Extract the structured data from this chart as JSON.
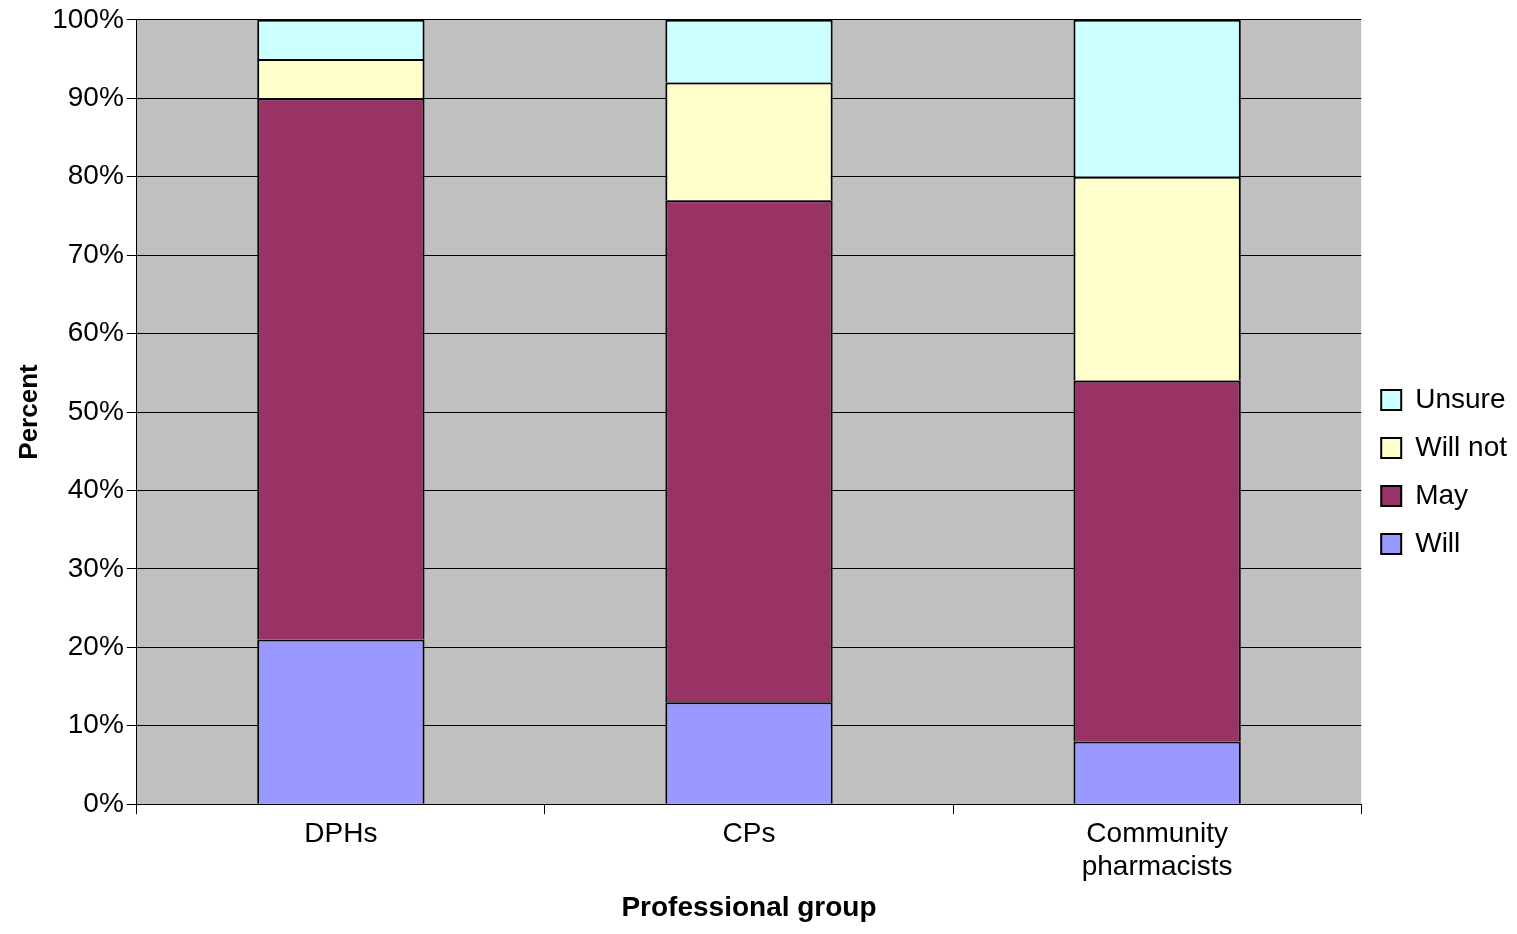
{
  "chart_data": {
    "type": "bar",
    "stacked": true,
    "xlabel": "Professional group",
    "ylabel": "Percent",
    "categories": [
      "DPHs",
      "CPs",
      "Community pharmacists"
    ],
    "series": [
      {
        "name": "Will",
        "color": "#9999ff",
        "values": [
          21,
          13,
          8
        ]
      },
      {
        "name": "May",
        "color": "#993366",
        "values": [
          69,
          64,
          46
        ]
      },
      {
        "name": "Will not",
        "color": "#ffffcc",
        "values": [
          5,
          15,
          26
        ]
      },
      {
        "name": "Unsure",
        "color": "#ccffff",
        "values": [
          5,
          8,
          20
        ]
      }
    ],
    "ylim": [
      0,
      100
    ],
    "yticks": [
      {
        "value": 0,
        "label": "0%"
      },
      {
        "value": 10,
        "label": "10%"
      },
      {
        "value": 20,
        "label": "20%"
      },
      {
        "value": 30,
        "label": "30%"
      },
      {
        "value": 40,
        "label": "40%"
      },
      {
        "value": 50,
        "label": "50%"
      },
      {
        "value": 60,
        "label": "60%"
      },
      {
        "value": 70,
        "label": "70%"
      },
      {
        "value": 80,
        "label": "80%"
      },
      {
        "value": 90,
        "label": "90%"
      },
      {
        "value": 100,
        "label": "100%"
      }
    ],
    "grid": "y",
    "legend": "right"
  }
}
